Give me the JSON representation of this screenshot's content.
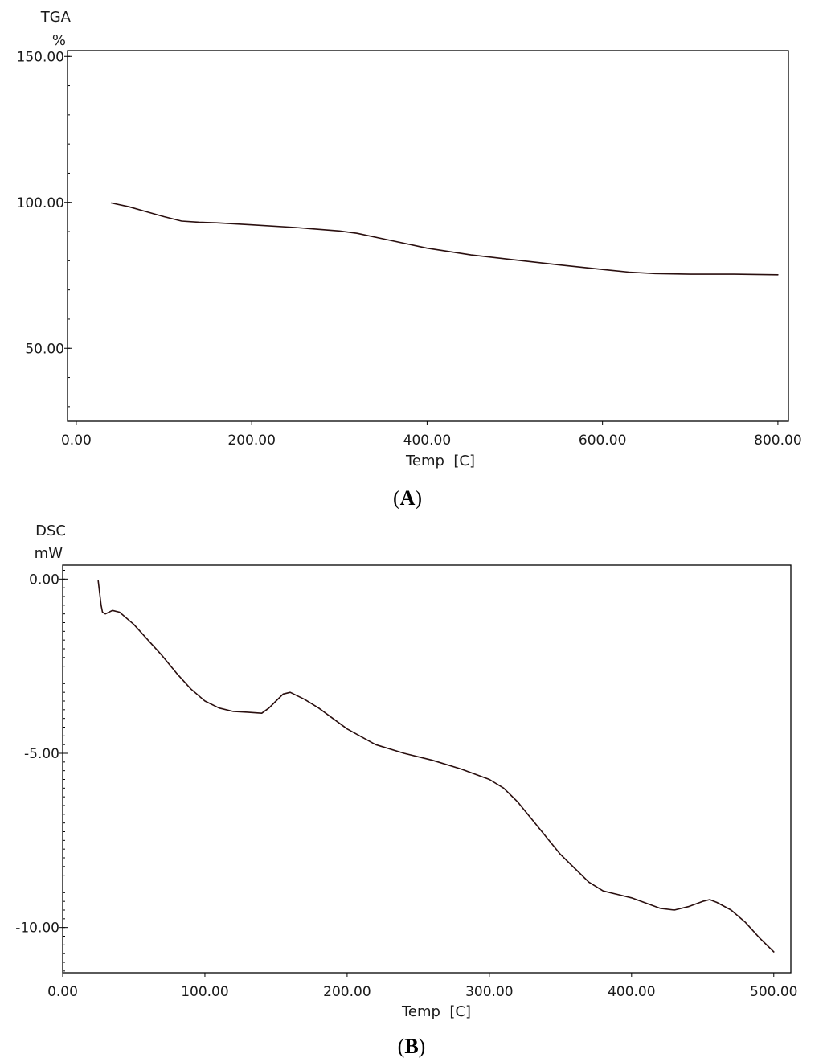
{
  "chart_data": [
    {
      "type": "line",
      "panel_label": "A",
      "ylabel_top": "TGA",
      "ylabel_unit": "%",
      "xlabel": "Temp  [C]",
      "xlim": [
        -10,
        812
      ],
      "ylim": [
        25,
        152
      ],
      "x_ticks": [
        {
          "value": 0,
          "label": "0.00"
        },
        {
          "value": 200,
          "label": "200.00"
        },
        {
          "value": 400,
          "label": "400.00"
        },
        {
          "value": 600,
          "label": "600.00"
        },
        {
          "value": 800,
          "label": "800.00"
        }
      ],
      "y_ticks": [
        {
          "value": 150,
          "label": "150.00"
        },
        {
          "value": 100,
          "label": "100.00"
        },
        {
          "value": 50,
          "label": "50.00"
        }
      ],
      "series": [
        {
          "color": "#2a0f0f",
          "x": [
            40,
            60,
            80,
            100,
            120,
            140,
            160,
            200,
            250,
            300,
            320,
            350,
            400,
            450,
            500,
            550,
            600,
            630,
            660,
            700,
            750,
            800
          ],
          "y": [
            99.8,
            98.5,
            96.8,
            95.1,
            93.6,
            93.2,
            93.0,
            92.3,
            91.4,
            90.2,
            89.4,
            87.5,
            84.3,
            82.0,
            80.3,
            78.6,
            77.0,
            76.1,
            75.6,
            75.4,
            75.4,
            75.2
          ]
        }
      ]
    },
    {
      "type": "line",
      "panel_label": "B",
      "ylabel_top": "DSC",
      "ylabel_unit": "mW",
      "xlabel": "Temp  [C]",
      "xlim": [
        0,
        512
      ],
      "ylim": [
        -11.3,
        0.4
      ],
      "x_ticks": [
        {
          "value": 0,
          "label": "0.00"
        },
        {
          "value": 100,
          "label": "100.00"
        },
        {
          "value": 200,
          "label": "200.00"
        },
        {
          "value": 300,
          "label": "300.00"
        },
        {
          "value": 400,
          "label": "400.00"
        },
        {
          "value": 500,
          "label": "500.00"
        }
      ],
      "y_ticks": [
        {
          "value": 0,
          "label": "0.00"
        },
        {
          "value": -5,
          "label": "-5.00"
        },
        {
          "value": -10,
          "label": "-10.00"
        }
      ],
      "series": [
        {
          "color": "#2a0f0f",
          "x": [
            25,
            26,
            27,
            28,
            30,
            35,
            40,
            50,
            60,
            70,
            80,
            90,
            100,
            110,
            120,
            130,
            140,
            145,
            150,
            155,
            160,
            170,
            180,
            190,
            200,
            220,
            240,
            260,
            280,
            300,
            310,
            320,
            330,
            340,
            350,
            360,
            370,
            380,
            390,
            400,
            410,
            420,
            430,
            440,
            450,
            455,
            460,
            470,
            480,
            490,
            500
          ],
          "y": [
            -0.05,
            -0.4,
            -0.75,
            -0.95,
            -1.0,
            -0.9,
            -0.95,
            -1.3,
            -1.75,
            -2.2,
            -2.7,
            -3.15,
            -3.5,
            -3.7,
            -3.8,
            -3.82,
            -3.85,
            -3.7,
            -3.5,
            -3.3,
            -3.25,
            -3.45,
            -3.7,
            -4.0,
            -4.3,
            -4.75,
            -5.0,
            -5.2,
            -5.45,
            -5.75,
            -6.0,
            -6.4,
            -6.9,
            -7.4,
            -7.9,
            -8.3,
            -8.7,
            -8.95,
            -9.05,
            -9.15,
            -9.3,
            -9.45,
            -9.5,
            -9.4,
            -9.25,
            -9.2,
            -9.28,
            -9.5,
            -9.85,
            -10.3,
            -10.7
          ]
        }
      ]
    }
  ]
}
